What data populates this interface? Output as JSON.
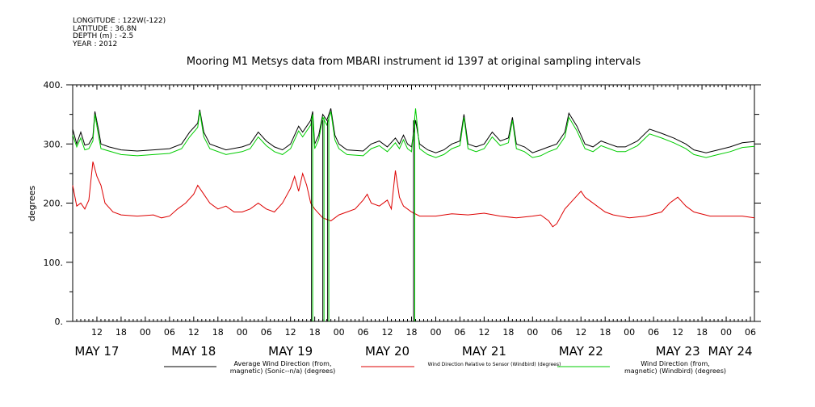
{
  "meta": {
    "longitude": "LONGITUDE : 122W(-122)",
    "latitude": "LATITUDE : 36.8N",
    "depth": "DEPTH (m) : -2.5",
    "year": "YEAR : 2012"
  },
  "chart_data": {
    "type": "line",
    "title": "Mooring M1 Metsys data from MBARI instrument id 1397 at original sampling intervals",
    "ylabel": "degrees",
    "xlabel": "",
    "ylim": [
      0,
      400
    ],
    "yticks": [
      "0.",
      "100.",
      "200.",
      "300.",
      "400."
    ],
    "xlim_hours_from_may17_0000": [
      6,
      175
    ],
    "hour_tick_labels": [
      "12",
      "18",
      "00",
      "06",
      "12",
      "18",
      "00",
      "06",
      "12",
      "18",
      "00",
      "06",
      "12",
      "18",
      "00",
      "06",
      "12",
      "18",
      "00",
      "06",
      "12",
      "18",
      "00",
      "06",
      "12",
      "18",
      "00",
      "06"
    ],
    "day_labels": [
      "MAY 17",
      "MAY 18",
      "MAY 19",
      "MAY 20",
      "MAY 21",
      "MAY 22",
      "MAY 23",
      "MAY 24"
    ],
    "grid": false,
    "legend_position": "bottom",
    "series": [
      {
        "name": "Average Wind Direction (from, magnetic) (Sonic--n/a) (degrees)",
        "legend_lines": [
          "Average Wind Direction (from,",
          "magnetic) (Sonic--n/a) (degrees)"
        ],
        "color": "#000000",
        "points": [
          [
            6,
            325
          ],
          [
            7,
            300
          ],
          [
            8,
            320
          ],
          [
            9,
            298
          ],
          [
            10,
            300
          ],
          [
            11,
            312
          ],
          [
            11.5,
            355
          ],
          [
            12.5,
            320
          ],
          [
            13,
            300
          ],
          [
            15,
            295
          ],
          [
            18,
            290
          ],
          [
            22,
            288
          ],
          [
            26,
            290
          ],
          [
            30,
            292
          ],
          [
            33,
            300
          ],
          [
            35,
            320
          ],
          [
            37,
            335
          ],
          [
            37.5,
            358
          ],
          [
            38.5,
            320
          ],
          [
            40,
            300
          ],
          [
            44,
            290
          ],
          [
            48,
            295
          ],
          [
            50,
            300
          ],
          [
            52,
            320
          ],
          [
            54,
            305
          ],
          [
            56,
            295
          ],
          [
            58,
            290
          ],
          [
            60,
            300
          ],
          [
            62,
            330
          ],
          [
            63,
            320
          ],
          [
            64,
            330
          ],
          [
            65,
            340
          ],
          [
            65.5,
            355
          ],
          [
            66,
            300
          ],
          [
            67,
            315
          ],
          [
            68,
            350
          ],
          [
            69,
            340
          ],
          [
            70,
            360
          ],
          [
            71,
            315
          ],
          [
            72,
            300
          ],
          [
            74,
            290
          ],
          [
            78,
            288
          ],
          [
            80,
            300
          ],
          [
            82,
            305
          ],
          [
            84,
            295
          ],
          [
            86,
            310
          ],
          [
            87,
            300
          ],
          [
            88,
            315
          ],
          [
            89,
            300
          ],
          [
            90,
            295
          ],
          [
            91,
            340
          ],
          [
            92,
            300
          ],
          [
            94,
            290
          ],
          [
            96,
            285
          ],
          [
            98,
            290
          ],
          [
            100,
            300
          ],
          [
            102,
            305
          ],
          [
            103,
            350
          ],
          [
            104,
            300
          ],
          [
            106,
            295
          ],
          [
            108,
            300
          ],
          [
            110,
            320
          ],
          [
            112,
            305
          ],
          [
            114,
            310
          ],
          [
            115,
            345
          ],
          [
            116,
            300
          ],
          [
            118,
            295
          ],
          [
            120,
            285
          ],
          [
            122,
            290
          ],
          [
            124,
            295
          ],
          [
            126,
            300
          ],
          [
            128,
            320
          ],
          [
            129,
            352
          ],
          [
            131,
            330
          ],
          [
            133,
            300
          ],
          [
            135,
            295
          ],
          [
            137,
            305
          ],
          [
            139,
            300
          ],
          [
            141,
            295
          ],
          [
            143,
            295
          ],
          [
            146,
            305
          ],
          [
            149,
            325
          ],
          [
            152,
            318
          ],
          [
            155,
            310
          ],
          [
            158,
            300
          ],
          [
            160,
            290
          ],
          [
            163,
            285
          ],
          [
            166,
            290
          ],
          [
            169,
            295
          ],
          [
            172,
            302
          ],
          [
            175,
            304
          ]
        ]
      },
      {
        "name": "Wind Direction Relative to Sensor (Windbird) (degrees)",
        "legend_lines": [
          "Wind Direction Relative to Sensor (Windbird) (degrees)"
        ],
        "color": "#dd0000",
        "points": [
          [
            6,
            230
          ],
          [
            7,
            195
          ],
          [
            8,
            200
          ],
          [
            9,
            190
          ],
          [
            10,
            205
          ],
          [
            11,
            270
          ],
          [
            12,
            245
          ],
          [
            13,
            230
          ],
          [
            14,
            200
          ],
          [
            16,
            185
          ],
          [
            18,
            180
          ],
          [
            22,
            178
          ],
          [
            26,
            180
          ],
          [
            28,
            175
          ],
          [
            30,
            178
          ],
          [
            32,
            190
          ],
          [
            34,
            200
          ],
          [
            36,
            215
          ],
          [
            37,
            230
          ],
          [
            38,
            220
          ],
          [
            40,
            200
          ],
          [
            42,
            190
          ],
          [
            44,
            195
          ],
          [
            46,
            185
          ],
          [
            48,
            185
          ],
          [
            50,
            190
          ],
          [
            52,
            200
          ],
          [
            54,
            190
          ],
          [
            56,
            185
          ],
          [
            58,
            200
          ],
          [
            60,
            225
          ],
          [
            61,
            245
          ],
          [
            62,
            220
          ],
          [
            63,
            250
          ],
          [
            64,
            230
          ],
          [
            65,
            200
          ],
          [
            66,
            190
          ],
          [
            68,
            175
          ],
          [
            70,
            170
          ],
          [
            72,
            180
          ],
          [
            74,
            185
          ],
          [
            76,
            190
          ],
          [
            78,
            205
          ],
          [
            79,
            215
          ],
          [
            80,
            200
          ],
          [
            82,
            195
          ],
          [
            84,
            205
          ],
          [
            85,
            190
          ],
          [
            86,
            255
          ],
          [
            87,
            210
          ],
          [
            88,
            195
          ],
          [
            90,
            185
          ],
          [
            92,
            178
          ],
          [
            96,
            178
          ],
          [
            100,
            182
          ],
          [
            104,
            180
          ],
          [
            108,
            183
          ],
          [
            112,
            178
          ],
          [
            116,
            175
          ],
          [
            120,
            178
          ],
          [
            122,
            180
          ],
          [
            124,
            170
          ],
          [
            125,
            160
          ],
          [
            126,
            165
          ],
          [
            128,
            190
          ],
          [
            130,
            205
          ],
          [
            132,
            220
          ],
          [
            133,
            210
          ],
          [
            134,
            205
          ],
          [
            136,
            195
          ],
          [
            138,
            185
          ],
          [
            140,
            180
          ],
          [
            144,
            175
          ],
          [
            148,
            178
          ],
          [
            152,
            185
          ],
          [
            154,
            200
          ],
          [
            156,
            210
          ],
          [
            158,
            195
          ],
          [
            160,
            185
          ],
          [
            164,
            178
          ],
          [
            168,
            178
          ],
          [
            172,
            178
          ],
          [
            175,
            175
          ]
        ]
      },
      {
        "name": "Wind Direction (from, magnetic) (Windbird) (degrees)",
        "legend_lines": [
          "Wind Direction (from,",
          "magnetic) (Windbird) (degrees)"
        ],
        "color": "#00cc00",
        "points": [
          [
            6,
            315
          ],
          [
            7,
            295
          ],
          [
            8,
            310
          ],
          [
            9,
            290
          ],
          [
            10,
            292
          ],
          [
            11,
            305
          ],
          [
            11.5,
            350
          ],
          [
            12.5,
            310
          ],
          [
            13,
            292
          ],
          [
            15,
            288
          ],
          [
            18,
            282
          ],
          [
            22,
            280
          ],
          [
            26,
            282
          ],
          [
            30,
            284
          ],
          [
            33,
            292
          ],
          [
            35,
            312
          ],
          [
            37,
            328
          ],
          [
            37.5,
            355
          ],
          [
            38.5,
            312
          ],
          [
            40,
            292
          ],
          [
            44,
            282
          ],
          [
            48,
            287
          ],
          [
            50,
            292
          ],
          [
            52,
            312
          ],
          [
            54,
            297
          ],
          [
            56,
            287
          ],
          [
            58,
            282
          ],
          [
            60,
            292
          ],
          [
            62,
            322
          ],
          [
            63,
            312
          ],
          [
            64,
            322
          ],
          [
            65,
            332
          ],
          [
            65.5,
            350
          ],
          [
            66,
            292
          ],
          [
            67,
            307
          ],
          [
            68,
            345
          ],
          [
            69,
            332
          ],
          [
            70,
            355
          ],
          [
            71,
            307
          ],
          [
            72,
            292
          ],
          [
            74,
            282
          ],
          [
            78,
            280
          ],
          [
            80,
            292
          ],
          [
            82,
            297
          ],
          [
            84,
            287
          ],
          [
            86,
            302
          ],
          [
            87,
            292
          ],
          [
            88,
            307
          ],
          [
            89,
            292
          ],
          [
            90,
            287
          ],
          [
            91,
            360
          ],
          [
            92,
            292
          ],
          [
            94,
            282
          ],
          [
            96,
            277
          ],
          [
            98,
            282
          ],
          [
            100,
            292
          ],
          [
            102,
            297
          ],
          [
            103,
            345
          ],
          [
            104,
            292
          ],
          [
            106,
            287
          ],
          [
            108,
            292
          ],
          [
            110,
            312
          ],
          [
            112,
            297
          ],
          [
            114,
            302
          ],
          [
            115,
            340
          ],
          [
            116,
            292
          ],
          [
            118,
            287
          ],
          [
            120,
            277
          ],
          [
            122,
            280
          ],
          [
            124,
            287
          ],
          [
            126,
            292
          ],
          [
            128,
            312
          ],
          [
            129,
            345
          ],
          [
            131,
            322
          ],
          [
            133,
            292
          ],
          [
            135,
            287
          ],
          [
            137,
            297
          ],
          [
            139,
            292
          ],
          [
            141,
            287
          ],
          [
            143,
            287
          ],
          [
            146,
            297
          ],
          [
            149,
            317
          ],
          [
            152,
            310
          ],
          [
            155,
            302
          ],
          [
            158,
            292
          ],
          [
            160,
            282
          ],
          [
            163,
            277
          ],
          [
            166,
            282
          ],
          [
            169,
            287
          ],
          [
            172,
            294
          ],
          [
            175,
            296
          ]
        ]
      }
    ],
    "dropouts": [
      {
        "series": "Wind Direction (from, magnetic) (Windbird) (degrees)",
        "hour": 65.2,
        "min": 0
      },
      {
        "series": "Wind Direction (from, magnetic) (Windbird) (degrees)",
        "hour": 68.0,
        "min": 0
      },
      {
        "series": "Wind Direction (from, magnetic) (Windbird) (degrees)",
        "hour": 69.2,
        "min": 0
      },
      {
        "series": "Wind Direction (from, magnetic) (Windbird) (degrees)",
        "hour": 90.5,
        "min": 0
      }
    ]
  }
}
